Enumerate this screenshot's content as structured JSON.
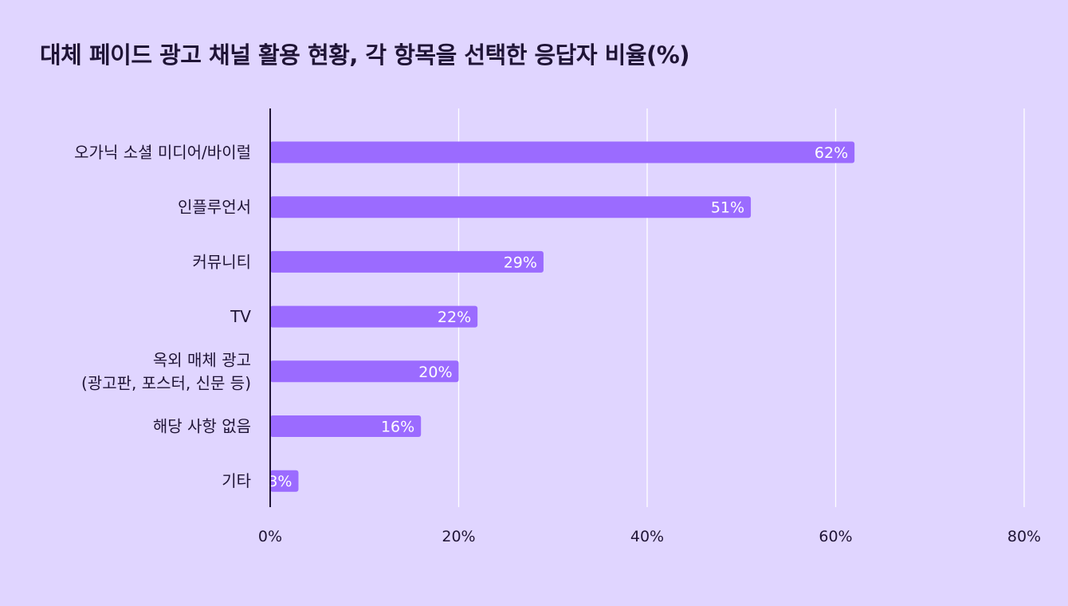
{
  "chart_data": {
    "type": "bar",
    "orientation": "horizontal",
    "title": "대체 페이드 광고 채널 활용 현황, 각 항목을 선택한 응답자 비율(%)",
    "categories": [
      [
        "오가닉 소셜 미디어/바이럴"
      ],
      [
        "인플루언서"
      ],
      [
        "커뮤니티"
      ],
      [
        "TV"
      ],
      [
        "옥외 매체 광고",
        "(광고판, 포스터, 신문 등)"
      ],
      [
        "해당 사항 없음"
      ],
      [
        "기타"
      ]
    ],
    "values": [
      62,
      51,
      29,
      22,
      20,
      16,
      3
    ],
    "value_labels": [
      "62%",
      "51%",
      "29%",
      "22%",
      "20%",
      "16%",
      "3%"
    ],
    "xlim": [
      0,
      80
    ],
    "xticks": [
      0,
      20,
      40,
      60,
      80
    ],
    "xtick_labels": [
      "0%",
      "20%",
      "40%",
      "60%",
      "80%"
    ],
    "xlabel": "",
    "ylabel": "",
    "grid": true,
    "colors": {
      "background": "#e0d5ff",
      "bar": "#9b6bff",
      "grid": "#ffffff",
      "axis": "#1f1436",
      "text": "#1f1436",
      "bar_label": "#ffffff"
    }
  }
}
